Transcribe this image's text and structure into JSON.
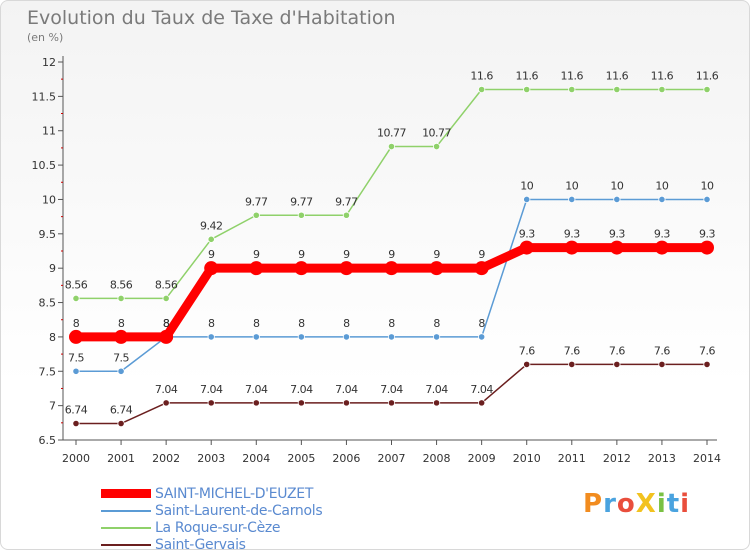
{
  "chart_data": {
    "type": "line",
    "title": "Evolution du Taux de Taxe d'Habitation",
    "subtitle": "(en %)",
    "x": [
      2000,
      2001,
      2002,
      2003,
      2004,
      2005,
      2006,
      2007,
      2008,
      2009,
      2010,
      2011,
      2012,
      2013,
      2014
    ],
    "ylim": [
      6.5,
      12
    ],
    "yticks": [
      6.5,
      7,
      7.5,
      8,
      8.5,
      9,
      9.5,
      10,
      10.5,
      11,
      11.5,
      12
    ],
    "grid": false,
    "legend_position": "bottom-left",
    "series": [
      {
        "name": "SAINT-MICHEL-D'EUZET",
        "color": "#ff0000",
        "values": [
          8,
          8,
          8,
          9,
          9,
          9,
          9,
          9,
          9,
          9,
          9.3,
          9.3,
          9.3,
          9.3,
          9.3
        ]
      },
      {
        "name": "Saint-Laurent-de-Carnols",
        "color": "#5b9bd5",
        "values": [
          7.5,
          7.5,
          8,
          8,
          8,
          8,
          8,
          8,
          8,
          8,
          10,
          10,
          10,
          10,
          10
        ]
      },
      {
        "name": "La Roque-sur-Cèze",
        "color": "#8fd16a",
        "values": [
          8.56,
          8.56,
          8.56,
          9.42,
          9.77,
          9.77,
          9.77,
          10.77,
          10.77,
          11.6,
          11.6,
          11.6,
          11.6,
          11.6,
          11.6
        ]
      },
      {
        "name": "Saint-Gervais",
        "color": "#6b1f1f",
        "values": [
          6.74,
          6.74,
          7.04,
          7.04,
          7.04,
          7.04,
          7.04,
          7.04,
          7.04,
          7.04,
          7.6,
          7.6,
          7.6,
          7.6,
          7.6
        ]
      }
    ]
  },
  "brand": {
    "text": "ProXiti"
  }
}
